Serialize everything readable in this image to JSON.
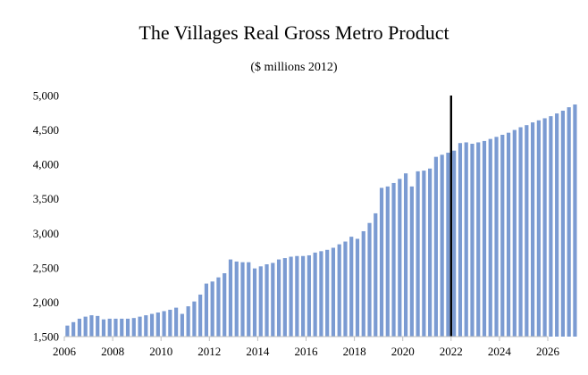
{
  "chart_data": {
    "type": "bar",
    "title": "The Villages Real Gross Metro Product",
    "subtitle": "($ millions 2012)",
    "xlabel": "",
    "ylabel": "",
    "frequency": "quarterly",
    "start_period": "2006 Q1",
    "ylim": [
      1500,
      5000
    ],
    "y_ticks": [
      {
        "value": 1500,
        "label": "1,500"
      },
      {
        "value": 2000,
        "label": "2,000"
      },
      {
        "value": 2500,
        "label": "2,500"
      },
      {
        "value": 3000,
        "label": "3,000"
      },
      {
        "value": 3500,
        "label": "3,500"
      },
      {
        "value": 4000,
        "label": "4,000"
      },
      {
        "value": 4500,
        "label": "4,500"
      },
      {
        "value": 5000,
        "label": "5,000"
      }
    ],
    "x_ticks": [
      "2006",
      "2008",
      "2010",
      "2012",
      "2014",
      "2016",
      "2018",
      "2020",
      "2022",
      "2024",
      "2026"
    ],
    "forecast_marker": "2022",
    "bar_color": "#7b9bd2",
    "marker_color": "#000000",
    "series": [
      {
        "name": "Real Gross Metro Product",
        "values": [
          1660,
          1710,
          1760,
          1790,
          1810,
          1800,
          1750,
          1760,
          1760,
          1760,
          1760,
          1770,
          1790,
          1810,
          1830,
          1850,
          1870,
          1890,
          1920,
          1830,
          1940,
          2010,
          2110,
          2270,
          2300,
          2360,
          2420,
          2620,
          2590,
          2580,
          2580,
          2490,
          2520,
          2550,
          2570,
          2620,
          2640,
          2660,
          2670,
          2670,
          2680,
          2720,
          2740,
          2760,
          2790,
          2840,
          2880,
          2950,
          2920,
          3030,
          3150,
          3290,
          3660,
          3680,
          3730,
          3790,
          3870,
          3680,
          3900,
          3910,
          3940,
          4110,
          4140,
          4170,
          4200,
          4310,
          4320,
          4300,
          4320,
          4340,
          4370,
          4400,
          4430,
          4460,
          4500,
          4540,
          4570,
          4610,
          4640,
          4670,
          4700,
          4740,
          4780,
          4830,
          4870
        ]
      }
    ]
  }
}
